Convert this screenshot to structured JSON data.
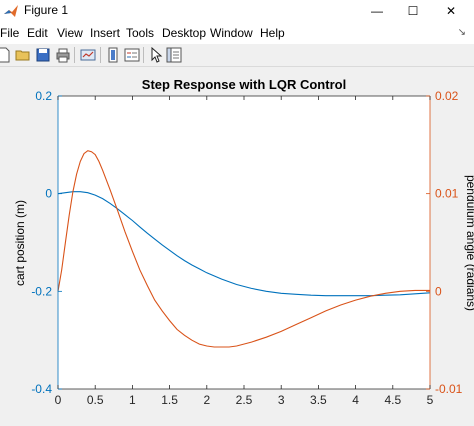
{
  "window": {
    "title": "Figure 1",
    "minimize_glyph": "—",
    "maximize_glyph": "☐",
    "close_glyph": "✕",
    "icon": "matlab-logo-icon"
  },
  "menu": {
    "items": [
      "File",
      "Edit",
      "View",
      "Insert",
      "Tools",
      "Desktop",
      "Window",
      "Help"
    ],
    "overflow_glyph": "↘"
  },
  "toolbar": {
    "icons": [
      "new-figure-icon",
      "open-file-icon",
      "save-icon",
      "print-icon",
      "link-plot-icon",
      "insert-colorbar-icon",
      "insert-legend-icon",
      "edit-plot-arrow-icon",
      "open-property-inspector-icon"
    ]
  },
  "colors": {
    "left_axis": "#0072BD",
    "right_axis": "#D95319",
    "cart_series": "#0072BD",
    "pendulum_series": "#D95319"
  },
  "chart_data": {
    "type": "line",
    "title": "Step Response with LQR Control",
    "xlabel": "",
    "ylabel": "cart position (m)",
    "ylabel_right": "pendulum angle (radians)",
    "xlim": [
      0,
      5
    ],
    "ylim": [
      -0.4,
      0.2
    ],
    "ylim_right": [
      -0.01,
      0.02
    ],
    "x_ticks": [
      "0",
      "0.5",
      "1",
      "1.5",
      "2",
      "2.5",
      "3",
      "3.5",
      "4",
      "4.5",
      "5"
    ],
    "y_ticks": [
      "-0.4",
      "-0.2",
      "0",
      "0.2"
    ],
    "y_ticks_right": [
      "-0.01",
      "0",
      "0.01",
      "0.02"
    ],
    "grid": false,
    "series": [
      {
        "axis": "left",
        "x": [
          0,
          0.1,
          0.2,
          0.3,
          0.4,
          0.5,
          0.6,
          0.7,
          0.8,
          0.9,
          1.0,
          1.1,
          1.2,
          1.3,
          1.4,
          1.5,
          1.6,
          1.7,
          1.8,
          1.9,
          2.0,
          2.2,
          2.4,
          2.6,
          2.8,
          3.0,
          3.2,
          3.4,
          3.6,
          3.8,
          4.0,
          4.2,
          4.4,
          4.6,
          4.8,
          5.0
        ],
        "y": [
          0,
          0.002,
          0.004,
          0.004,
          0.002,
          -0.003,
          -0.01,
          -0.02,
          -0.031,
          -0.043,
          -0.055,
          -0.068,
          -0.081,
          -0.093,
          -0.105,
          -0.116,
          -0.127,
          -0.137,
          -0.146,
          -0.154,
          -0.162,
          -0.175,
          -0.186,
          -0.194,
          -0.2,
          -0.204,
          -0.206,
          -0.208,
          -0.209,
          -0.209,
          -0.209,
          -0.209,
          -0.208,
          -0.207,
          -0.205,
          -0.203
        ]
      },
      {
        "axis": "right",
        "x": [
          0,
          0.05,
          0.1,
          0.15,
          0.2,
          0.25,
          0.3,
          0.35,
          0.4,
          0.45,
          0.5,
          0.55,
          0.6,
          0.7,
          0.8,
          0.9,
          1.0,
          1.1,
          1.2,
          1.3,
          1.4,
          1.5,
          1.6,
          1.7,
          1.8,
          1.9,
          2.0,
          2.1,
          2.2,
          2.3,
          2.4,
          2.6,
          2.8,
          3.0,
          3.2,
          3.4,
          3.6,
          3.8,
          4.0,
          4.2,
          4.4,
          4.6,
          4.8,
          5.0
        ],
        "y": [
          0,
          0.0022,
          0.005,
          0.0078,
          0.0102,
          0.012,
          0.0133,
          0.0141,
          0.0144,
          0.0143,
          0.014,
          0.0133,
          0.0124,
          0.0104,
          0.0083,
          0.0061,
          0.0041,
          0.0022,
          0.0006,
          -0.0009,
          -0.002,
          -0.003,
          -0.0039,
          -0.0045,
          -0.005,
          -0.0054,
          -0.0056,
          -0.0057,
          -0.0057,
          -0.0057,
          -0.0056,
          -0.0052,
          -0.0047,
          -0.0041,
          -0.0034,
          -0.0027,
          -0.002,
          -0.0014,
          -0.0009,
          -0.0005,
          -0.0002,
          0,
          0.0001,
          0.0001
        ]
      }
    ]
  }
}
